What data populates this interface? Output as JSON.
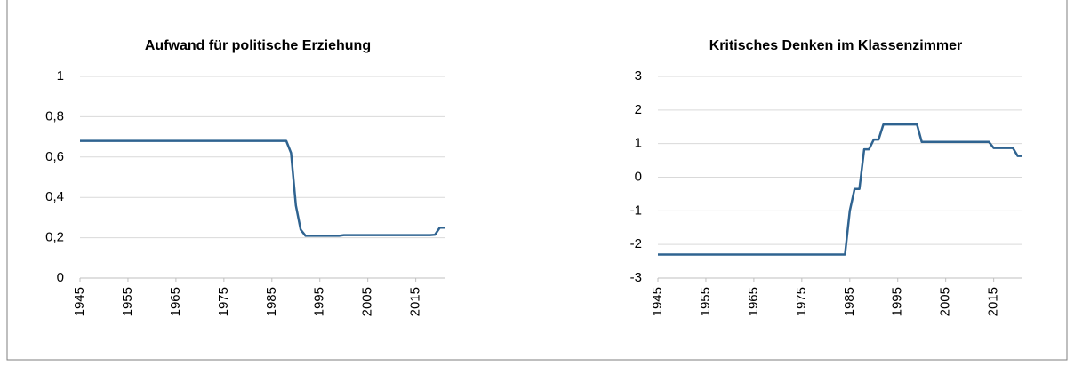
{
  "chart_data": [
    {
      "type": "line",
      "title": "Aufwand für politische Erziehung",
      "color": "#2f6390",
      "grid": true,
      "x": [
        1945,
        1946,
        1947,
        1948,
        1949,
        1950,
        1951,
        1952,
        1953,
        1954,
        1955,
        1956,
        1957,
        1958,
        1959,
        1960,
        1961,
        1962,
        1963,
        1964,
        1965,
        1966,
        1967,
        1968,
        1969,
        1970,
        1971,
        1972,
        1973,
        1974,
        1975,
        1976,
        1977,
        1978,
        1979,
        1980,
        1981,
        1982,
        1983,
        1984,
        1985,
        1986,
        1987,
        1988,
        1989,
        1990,
        1991,
        1992,
        1993,
        1994,
        1995,
        1996,
        1997,
        1998,
        1999,
        2000,
        2001,
        2002,
        2003,
        2004,
        2005,
        2006,
        2007,
        2008,
        2009,
        2010,
        2011,
        2012,
        2013,
        2014,
        2015,
        2016,
        2017,
        2018,
        2019,
        2020,
        2021
      ],
      "values": [
        0.68,
        0.68,
        0.68,
        0.68,
        0.68,
        0.68,
        0.68,
        0.68,
        0.68,
        0.68,
        0.68,
        0.68,
        0.68,
        0.68,
        0.68,
        0.68,
        0.68,
        0.68,
        0.68,
        0.68,
        0.68,
        0.68,
        0.68,
        0.68,
        0.68,
        0.68,
        0.68,
        0.68,
        0.68,
        0.68,
        0.68,
        0.68,
        0.68,
        0.68,
        0.68,
        0.68,
        0.68,
        0.68,
        0.68,
        0.68,
        0.68,
        0.68,
        0.68,
        0.68,
        0.62,
        0.36,
        0.24,
        0.21,
        0.21,
        0.21,
        0.21,
        0.21,
        0.21,
        0.21,
        0.21,
        0.213,
        0.213,
        0.213,
        0.213,
        0.213,
        0.213,
        0.213,
        0.213,
        0.213,
        0.213,
        0.213,
        0.213,
        0.213,
        0.213,
        0.213,
        0.213,
        0.213,
        0.213,
        0.213,
        0.215,
        0.25,
        0.25
      ],
      "xlim": [
        1945,
        2021
      ],
      "xticks": [
        1945,
        1955,
        1965,
        1975,
        1985,
        1995,
        2005,
        2015
      ],
      "ylim": [
        0,
        1
      ],
      "yticks": [
        0,
        {
          "value": 0.2,
          "label": "0,2"
        },
        {
          "value": 0.4,
          "label": "0,4"
        },
        {
          "value": 0.6,
          "label": "0,6"
        },
        {
          "value": 0.8,
          "label": "0,8"
        },
        1
      ]
    },
    {
      "type": "line",
      "title": "Kritisches Denken im Klassenzimmer",
      "color": "#2f6390",
      "grid": true,
      "x": [
        1945,
        1946,
        1947,
        1948,
        1949,
        1950,
        1951,
        1952,
        1953,
        1954,
        1955,
        1956,
        1957,
        1958,
        1959,
        1960,
        1961,
        1962,
        1963,
        1964,
        1965,
        1966,
        1967,
        1968,
        1969,
        1970,
        1971,
        1972,
        1973,
        1974,
        1975,
        1976,
        1977,
        1978,
        1979,
        1980,
        1981,
        1982,
        1983,
        1984,
        1985,
        1986,
        1987,
        1988,
        1989,
        1990,
        1991,
        1992,
        1993,
        1994,
        1995,
        1996,
        1997,
        1998,
        1999,
        2000,
        2001,
        2002,
        2003,
        2004,
        2005,
        2006,
        2007,
        2008,
        2009,
        2010,
        2011,
        2012,
        2013,
        2014,
        2015,
        2016,
        2017,
        2018,
        2019,
        2020,
        2021
      ],
      "values": [
        -2.3,
        -2.3,
        -2.3,
        -2.3,
        -2.3,
        -2.3,
        -2.3,
        -2.3,
        -2.3,
        -2.3,
        -2.3,
        -2.3,
        -2.3,
        -2.3,
        -2.3,
        -2.3,
        -2.3,
        -2.3,
        -2.3,
        -2.3,
        -2.3,
        -2.3,
        -2.3,
        -2.3,
        -2.3,
        -2.3,
        -2.3,
        -2.3,
        -2.3,
        -2.3,
        -2.3,
        -2.3,
        -2.3,
        -2.3,
        -2.3,
        -2.3,
        -2.3,
        -2.3,
        -2.3,
        -2.3,
        -1.0,
        -0.35,
        -0.35,
        0.83,
        0.83,
        1.12,
        1.12,
        1.57,
        1.57,
        1.57,
        1.57,
        1.57,
        1.57,
        1.57,
        1.57,
        1.05,
        1.05,
        1.05,
        1.05,
        1.05,
        1.05,
        1.05,
        1.05,
        1.05,
        1.05,
        1.05,
        1.05,
        1.05,
        1.05,
        1.05,
        0.87,
        0.87,
        0.87,
        0.87,
        0.87,
        0.63,
        0.63
      ],
      "xlim": [
        1945,
        2021
      ],
      "xticks": [
        1945,
        1955,
        1965,
        1975,
        1985,
        1995,
        2005,
        2015
      ],
      "ylim": [
        -3,
        3
      ],
      "yticks": [
        -3,
        -2,
        -1,
        0,
        1,
        2,
        3
      ]
    }
  ]
}
